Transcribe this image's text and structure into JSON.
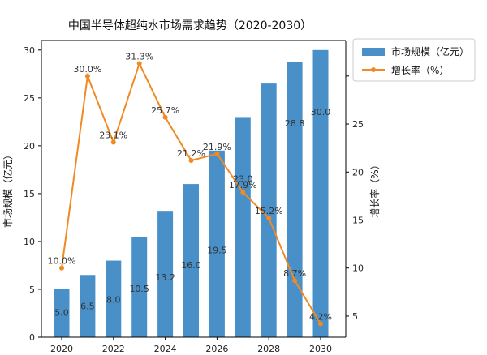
{
  "chart_data": {
    "type": "bar+line",
    "title": "中国半导体超纯水市场需求趋势（2020-2030）",
    "categories": [
      "2020",
      "2021",
      "2022",
      "2023",
      "2024",
      "2025",
      "2026",
      "2027",
      "2028",
      "2029",
      "2030"
    ],
    "x_tick_labels": [
      "2020",
      "2022",
      "2024",
      "2026",
      "2028",
      "2030"
    ],
    "series": [
      {
        "name": "市场规模（亿元）",
        "type": "bar",
        "axis": "left",
        "color": "#4a90c8",
        "values": [
          5.0,
          6.5,
          8.0,
          10.5,
          13.2,
          16.0,
          19.5,
          23.0,
          26.5,
          28.8,
          30.0
        ],
        "data_labels": [
          "5.0",
          "6.5",
          "8.0",
          "10.5",
          "13.2",
          "16.0",
          "19.5",
          "23.0",
          "",
          "28.8",
          "30.0"
        ]
      },
      {
        "name": "增长率（%）",
        "type": "line",
        "axis": "right",
        "color": "#f08a24",
        "values": [
          10.0,
          30.0,
          23.1,
          31.3,
          25.7,
          21.2,
          21.9,
          17.9,
          15.2,
          8.7,
          4.2
        ],
        "data_labels": [
          "10.0%",
          "30.0%",
          "23.1%",
          "31.3%",
          "25.7%",
          "21.2%",
          "21.9%",
          "17.9%",
          "15.2%",
          "8.7%",
          "4.2%"
        ]
      }
    ],
    "ylabel_left": "市场规模（亿元）",
    "ylabel_right": "增长率（%）",
    "ylim_left": [
      0,
      31
    ],
    "yticks_left": [
      "0",
      "5",
      "10",
      "15",
      "20",
      "25",
      "30"
    ],
    "ylim_right": [
      2.8,
      33.7
    ],
    "yticks_right": [
      "5",
      "10",
      "15",
      "20",
      "25",
      "30"
    ],
    "legend_position": "top-right",
    "grid": false
  }
}
